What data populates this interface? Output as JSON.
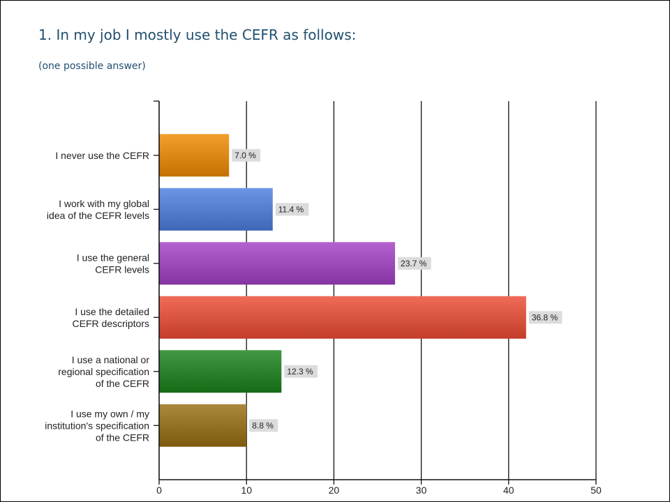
{
  "slide": {
    "title": "1. In my job I mostly use the CEFR as follows:",
    "subtitle": "(one possible answer)"
  },
  "chart_data": {
    "type": "bar",
    "orientation": "horizontal",
    "categories": [
      [
        "I never use the CEFR"
      ],
      [
        "I work with my global",
        "idea of the CEFR levels"
      ],
      [
        "I use the general",
        "CEFR levels"
      ],
      [
        "I use the detailed",
        "CEFR descriptors"
      ],
      [
        "I use a national or",
        "regional specification",
        "of the CEFR"
      ],
      [
        "I use my own / my",
        "institution's specification",
        "of the CEFR"
      ]
    ],
    "values": [
      8,
      13,
      27,
      42,
      14,
      10
    ],
    "value_labels": [
      "7.0 %",
      "11.4 %",
      "23.7 %",
      "36.8 %",
      "12.3 %",
      "8.8 %"
    ],
    "bar_colors": [
      "#f08a00",
      "#4d7ee0",
      "#a33fc4",
      "#ee4c33",
      "#1a821a",
      "#9a6e12"
    ],
    "xlim": [
      0,
      50
    ],
    "xticks": [
      0,
      10,
      20,
      30,
      40,
      50
    ],
    "grid": true,
    "legend": "none"
  }
}
